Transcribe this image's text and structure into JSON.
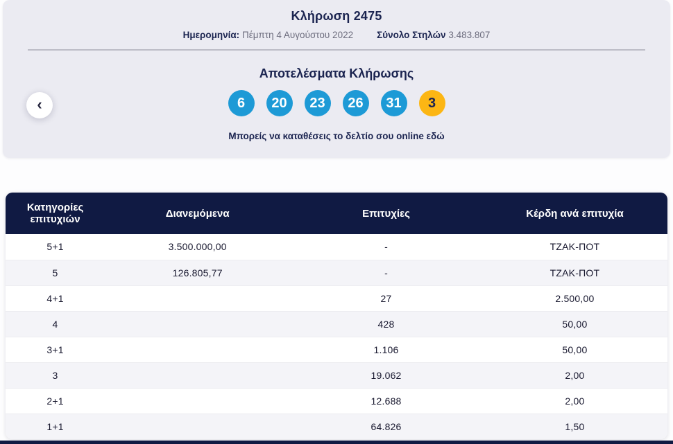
{
  "colors": {
    "navy": "#101a43",
    "text_navy": "#1b2450",
    "ball_blue": "#1d9ad6",
    "ball_orange": "#fcb614"
  },
  "draw": {
    "title": "Κλήρωση 2475",
    "date_label": "Ημερομηνία:",
    "date_value": "Πέμπτη 4 Αυγούστου 2022",
    "columns_label": "Σύνολο Στηλών",
    "columns_value": "3.483.807",
    "results_title": "Αποτελέσματα Κλήρωσης",
    "numbers": [
      "6",
      "20",
      "23",
      "26",
      "31"
    ],
    "joker": "3",
    "online_text": "Μπορείς να καταθέσεις το δελτίο σου online",
    "online_link": "εδώ",
    "prev_icon": "‹"
  },
  "table": {
    "headers": [
      "Κατηγορίες επιτυχιών",
      "Διανεμόμενα",
      "Επιτυχίες",
      "Κέρδη ανά επιτυχία"
    ],
    "rows": [
      {
        "category": "5+1",
        "distributed": "3.500.000,00",
        "winners": "-",
        "payout": "ΤΖΑΚ-ΠΟΤ"
      },
      {
        "category": "5",
        "distributed": "126.805,77",
        "winners": "-",
        "payout": "ΤΖΑΚ-ΠΟΤ"
      },
      {
        "category": "4+1",
        "distributed": "",
        "winners": "27",
        "payout": "2.500,00"
      },
      {
        "category": "4",
        "distributed": "",
        "winners": "428",
        "payout": "50,00"
      },
      {
        "category": "3+1",
        "distributed": "",
        "winners": "1.106",
        "payout": "50,00"
      },
      {
        "category": "3",
        "distributed": "",
        "winners": "19.062",
        "payout": "2,00"
      },
      {
        "category": "2+1",
        "distributed": "",
        "winners": "12.688",
        "payout": "2,00"
      },
      {
        "category": "1+1",
        "distributed": "",
        "winners": "64.826",
        "payout": "1,50"
      }
    ]
  }
}
